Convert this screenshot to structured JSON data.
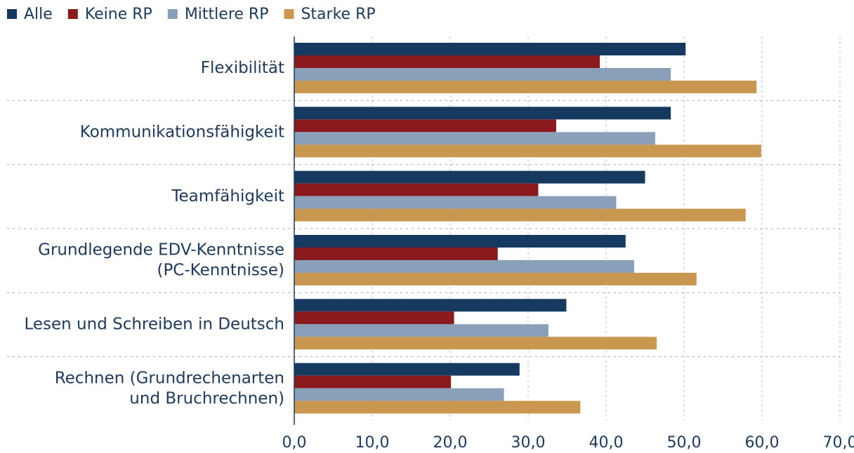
{
  "chart_data": {
    "type": "hbar",
    "categories": [
      [
        "Flexibilität"
      ],
      [
        "Kommunikationsfähigkeit"
      ],
      [
        "Teamfähigkeit"
      ],
      [
        "Grundlegende EDV-Kenntnisse",
        "(PC-Kenntnisse)"
      ],
      [
        "Lesen und Schreiben in Deutsch"
      ],
      [
        "Rechnen (Grundrechenarten",
        "und Bruchrechnen)"
      ]
    ],
    "series": [
      {
        "name": "Alle",
        "color": "#163a5f",
        "values": [
          50.2,
          48.3,
          45.0,
          42.5,
          34.9,
          28.9
        ]
      },
      {
        "name": "Keine RP",
        "color": "#8b1a1f",
        "values": [
          39.2,
          33.6,
          31.3,
          26.1,
          20.5,
          20.1
        ]
      },
      {
        "name": "Mittlere RP",
        "color": "#8a9fb8",
        "values": [
          48.3,
          46.3,
          41.3,
          43.6,
          32.6,
          26.9
        ]
      },
      {
        "name": "Starke RP",
        "color": "#c9974f",
        "values": [
          59.3,
          59.9,
          57.9,
          51.6,
          46.5,
          36.7
        ]
      }
    ],
    "xlim": [
      0,
      70
    ],
    "xticks": [
      {
        "value": 0,
        "label": "0,0"
      },
      {
        "value": 10,
        "label": "10,0"
      },
      {
        "value": 20,
        "label": "20,0"
      },
      {
        "value": 30,
        "label": "30,0"
      },
      {
        "value": 40,
        "label": "40,0"
      },
      {
        "value": 50,
        "label": "50,0"
      },
      {
        "value": 60,
        "label": "60,0"
      },
      {
        "value": 70,
        "label": "70,0"
      }
    ],
    "grid": true,
    "legend": "top-left"
  }
}
